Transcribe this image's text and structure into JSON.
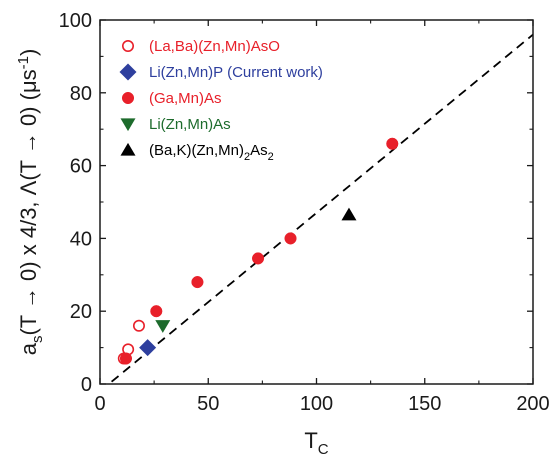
{
  "chart_data": {
    "type": "scatter",
    "xlabel": {
      "main": "T",
      "sub": "C"
    },
    "ylabel": {
      "part1": "a",
      "sub1": "s",
      "part2": "(T → 0) x 4/3, Λ(T → 0) (μs",
      "sup": "-1",
      "part3": ")"
    },
    "xlim": [
      0,
      200
    ],
    "ylim": [
      0,
      100
    ],
    "x_ticks": [
      0,
      50,
      100,
      150,
      200
    ],
    "y_ticks": [
      0,
      20,
      40,
      60,
      80,
      100
    ],
    "grid": false,
    "legend_position": "top-left",
    "fit_line": {
      "style": "dashed",
      "color": "#000000",
      "x": [
        0,
        200
      ],
      "y": [
        -2,
        96
      ]
    },
    "series": [
      {
        "name": "(La,Ba)(Zn,Mn)AsO",
        "legend_parts": [
          {
            "text": "(La,Ba)(Zn,Mn)AsO"
          }
        ],
        "color": "#e8202a",
        "marker": "circle-open",
        "points": [
          {
            "x": 11,
            "y": 7
          },
          {
            "x": 13,
            "y": 9.5
          },
          {
            "x": 18,
            "y": 16
          }
        ]
      },
      {
        "name": "Li(Zn,Mn)P (Current work)",
        "legend_parts": [
          {
            "text": "Li(Zn,Mn)P (Current work)"
          }
        ],
        "color": "#2e3f9e",
        "marker": "diamond",
        "points": [
          {
            "x": 22,
            "y": 10
          }
        ]
      },
      {
        "name": "(Ga,Mn)As",
        "legend_parts": [
          {
            "text": "(Ga,Mn)As"
          }
        ],
        "color": "#e8202a",
        "marker": "circle-filled",
        "points": [
          {
            "x": 12,
            "y": 7
          },
          {
            "x": 26,
            "y": 20
          },
          {
            "x": 45,
            "y": 28
          },
          {
            "x": 73,
            "y": 34.5
          },
          {
            "x": 88,
            "y": 40
          },
          {
            "x": 135,
            "y": 66
          }
        ]
      },
      {
        "name": "Li(Zn,Mn)As",
        "legend_parts": [
          {
            "text": "Li(Zn,Mn)As"
          }
        ],
        "color": "#1d6b2c",
        "marker": "triangle-down",
        "points": [
          {
            "x": 29,
            "y": 16
          }
        ]
      },
      {
        "name": "(Ba,K)(Zn,Mn)2As2",
        "legend_parts": [
          {
            "text": "(Ba,K)(Zn,Mn)"
          },
          {
            "text": "2",
            "sub": true
          },
          {
            "text": "As"
          },
          {
            "text": "2",
            "sub": true
          }
        ],
        "color": "#000000",
        "marker": "triangle-up",
        "points": [
          {
            "x": 115,
            "y": 46.5
          }
        ]
      }
    ]
  }
}
